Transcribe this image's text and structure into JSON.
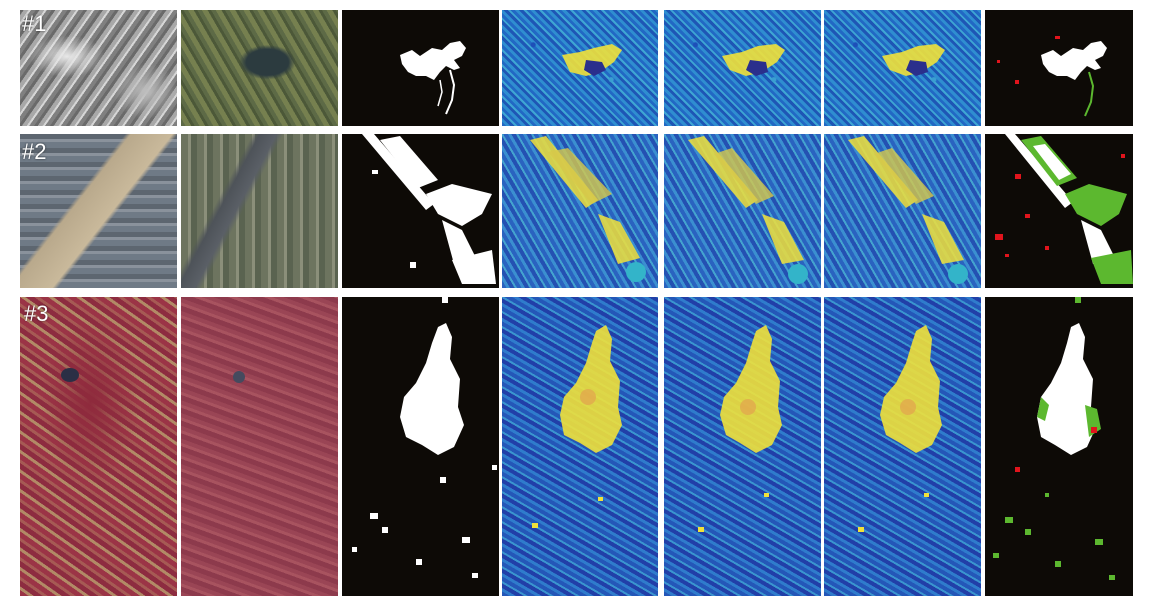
{
  "rows": [
    {
      "label": "#1"
    },
    {
      "label": "#2"
    },
    {
      "label": "#3"
    }
  ],
  "colors": {
    "change_white": "#ffffff",
    "missed_green": "#5cb82f",
    "false_alarm_red": "#e0141c",
    "background_black": "#0d0a06",
    "heat_yellow": "#f1e13a",
    "heat_blue": "#2b6cc4"
  }
}
